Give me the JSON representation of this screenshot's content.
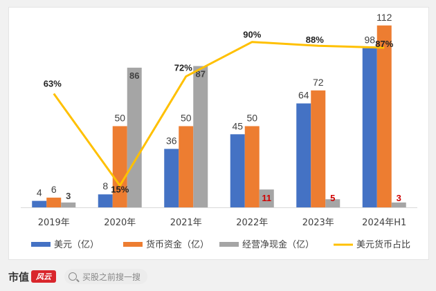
{
  "chart_data": {
    "type": "bar",
    "categories": [
      "2019年",
      "2020年",
      "2021年",
      "2022年",
      "2023年",
      "2024年H1"
    ],
    "series": [
      {
        "name": "美元（亿）",
        "values": [
          4,
          8,
          36,
          45,
          64,
          98
        ],
        "labels": [
          "4",
          "8",
          "36",
          "45",
          "64",
          "98"
        ],
        "color": "#4472c4"
      },
      {
        "name": "货币资金（亿）",
        "values": [
          6,
          50,
          50,
          50,
          72,
          112
        ],
        "labels": [
          "6",
          "50",
          "50",
          "50",
          "72",
          "112"
        ],
        "color": "#ed7d31"
      },
      {
        "name": "经营净现金（亿）",
        "values": [
          3,
          86,
          87,
          11,
          5,
          3
        ],
        "labels": [
          "3",
          "86",
          "87",
          "11",
          "5",
          "3"
        ],
        "color": "#a5a5a5"
      }
    ],
    "line": {
      "name": "美元货币占比",
      "values": [
        63,
        15,
        72,
        90,
        88,
        87
      ],
      "labels": [
        "63%",
        "15%",
        "72%",
        "90%",
        "88%",
        "87%"
      ],
      "color": "#ffc000"
    },
    "label_colors": {
      "default": "#404040",
      "emphasis": "#d00000"
    },
    "ylim": [
      0,
      120
    ],
    "line_ylim": [
      0,
      100
    ],
    "legend": "bottom"
  },
  "footer": {
    "brand_text": "市值",
    "brand_mark": "风云",
    "search_placeholder": "买股之前搜一搜"
  }
}
